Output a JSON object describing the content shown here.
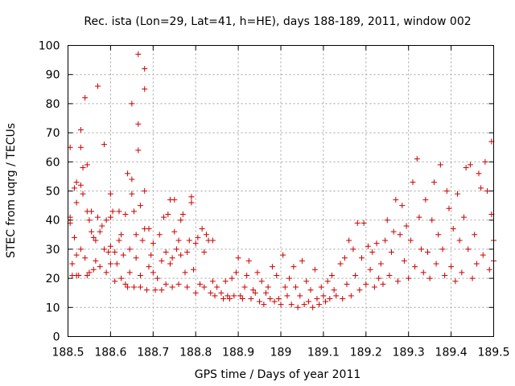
{
  "chart_data": {
    "type": "scatter",
    "title": "Rec. ista (Lon=29, Lat=41, h=HE), days 188-189, 2011, window 002",
    "xlabel": "GPS time / Days of year 2011",
    "ylabel": "STEC from uqrg / TECUs",
    "xlim": [
      188.5,
      189.5
    ],
    "ylim": [
      0,
      100
    ],
    "xticks": [
      188.5,
      188.6,
      188.7,
      188.8,
      188.9,
      189,
      189.1,
      189.2,
      189.3,
      189.4,
      189.5
    ],
    "xtick_labels": [
      "188.5",
      "188.6",
      "188.7",
      "188.8",
      "188.9",
      "189",
      "189.1",
      "189.2",
      "189.3",
      "189.4",
      "189.5"
    ],
    "yticks": [
      0,
      10,
      20,
      30,
      40,
      50,
      60,
      70,
      80,
      90,
      100
    ],
    "ytick_labels": [
      "0",
      "10",
      "20",
      "30",
      "40",
      "50",
      "60",
      "70",
      "80",
      "90",
      "100"
    ],
    "grid": true,
    "marker": "+",
    "color": "#cc0000",
    "series": [
      {
        "name": "STEC",
        "points": [
          [
            188.505,
            65
          ],
          [
            188.505,
            41
          ],
          [
            188.505,
            39
          ],
          [
            188.51,
            25
          ],
          [
            188.51,
            21
          ],
          [
            188.515,
            51
          ],
          [
            188.515,
            34
          ],
          [
            188.52,
            53
          ],
          [
            188.52,
            46
          ],
          [
            188.52,
            28
          ],
          [
            188.52,
            21
          ],
          [
            188.525,
            21
          ],
          [
            188.53,
            71
          ],
          [
            188.53,
            65
          ],
          [
            188.53,
            52
          ],
          [
            188.53,
            30
          ],
          [
            188.535,
            58
          ],
          [
            188.535,
            49
          ],
          [
            188.54,
            82
          ],
          [
            188.54,
            27
          ],
          [
            188.545,
            59
          ],
          [
            188.545,
            43
          ],
          [
            188.545,
            21
          ],
          [
            188.55,
            40
          ],
          [
            188.55,
            22
          ],
          [
            188.555,
            43
          ],
          [
            188.555,
            36
          ],
          [
            188.56,
            34
          ],
          [
            188.56,
            23
          ],
          [
            188.565,
            33
          ],
          [
            188.565,
            26
          ],
          [
            188.57,
            86
          ],
          [
            188.57,
            41
          ],
          [
            188.575,
            36
          ],
          [
            188.575,
            24
          ],
          [
            188.58,
            38
          ],
          [
            188.585,
            30
          ],
          [
            188.585,
            66
          ],
          [
            188.59,
            40
          ],
          [
            188.59,
            22
          ],
          [
            188.595,
            29
          ],
          [
            188.6,
            49
          ],
          [
            188.6,
            41
          ],
          [
            188.6,
            31
          ],
          [
            188.6,
            25
          ],
          [
            188.605,
            43
          ],
          [
            188.61,
            29
          ],
          [
            188.61,
            19
          ],
          [
            188.615,
            25
          ],
          [
            188.62,
            33
          ],
          [
            188.62,
            43
          ],
          [
            188.625,
            35
          ],
          [
            188.625,
            20
          ],
          [
            188.63,
            28
          ],
          [
            188.635,
            42
          ],
          [
            188.635,
            18
          ],
          [
            188.64,
            56
          ],
          [
            188.64,
            17
          ],
          [
            188.645,
            30
          ],
          [
            188.645,
            22
          ],
          [
            188.65,
            80
          ],
          [
            188.65,
            54
          ],
          [
            188.65,
            49
          ],
          [
            188.655,
            17
          ],
          [
            188.655,
            43
          ],
          [
            188.66,
            27
          ],
          [
            188.66,
            35
          ],
          [
            188.665,
            97
          ],
          [
            188.665,
            73
          ],
          [
            188.665,
            64
          ],
          [
            188.67,
            45
          ],
          [
            188.67,
            21
          ],
          [
            188.67,
            17
          ],
          [
            188.675,
            33
          ],
          [
            188.68,
            92
          ],
          [
            188.68,
            85
          ],
          [
            188.68,
            50
          ],
          [
            188.68,
            37
          ],
          [
            188.685,
            16
          ],
          [
            188.69,
            24
          ],
          [
            188.69,
            37
          ],
          [
            188.695,
            28
          ],
          [
            188.7,
            32
          ],
          [
            188.7,
            22
          ],
          [
            188.705,
            16
          ],
          [
            188.71,
            20
          ],
          [
            188.715,
            35
          ],
          [
            188.72,
            26
          ],
          [
            188.72,
            16
          ],
          [
            188.725,
            41
          ],
          [
            188.73,
            29
          ],
          [
            188.73,
            18
          ],
          [
            188.735,
            42
          ],
          [
            188.74,
            47
          ],
          [
            188.74,
            25
          ],
          [
            188.745,
            27
          ],
          [
            188.745,
            17
          ],
          [
            188.75,
            47
          ],
          [
            188.75,
            36
          ],
          [
            188.755,
            30
          ],
          [
            188.76,
            33
          ],
          [
            188.76,
            18
          ],
          [
            188.765,
            40
          ],
          [
            188.765,
            28
          ],
          [
            188.77,
            42
          ],
          [
            188.775,
            22
          ],
          [
            188.78,
            29
          ],
          [
            188.78,
            17
          ],
          [
            188.785,
            33
          ],
          [
            188.79,
            46
          ],
          [
            188.79,
            48
          ],
          [
            188.795,
            23
          ],
          [
            188.8,
            32
          ],
          [
            188.8,
            15
          ],
          [
            188.805,
            34
          ],
          [
            188.81,
            18
          ],
          [
            188.815,
            37
          ],
          [
            188.82,
            29
          ],
          [
            188.82,
            17
          ],
          [
            188.825,
            35
          ],
          [
            188.83,
            33
          ],
          [
            188.835,
            15
          ],
          [
            188.84,
            33
          ],
          [
            188.84,
            19
          ],
          [
            188.845,
            14
          ],
          [
            188.85,
            17
          ],
          [
            188.86,
            15
          ],
          [
            188.865,
            13
          ],
          [
            188.87,
            19
          ],
          [
            188.875,
            14
          ],
          [
            188.88,
            13
          ],
          [
            188.885,
            20
          ],
          [
            188.89,
            14
          ],
          [
            188.895,
            22
          ],
          [
            188.9,
            27
          ],
          [
            188.905,
            14
          ],
          [
            188.91,
            13
          ],
          [
            188.915,
            17
          ],
          [
            188.92,
            21
          ],
          [
            188.925,
            26
          ],
          [
            188.93,
            13
          ],
          [
            188.935,
            16
          ],
          [
            188.94,
            15
          ],
          [
            188.945,
            22
          ],
          [
            188.95,
            12
          ],
          [
            188.955,
            19
          ],
          [
            188.96,
            11
          ],
          [
            188.965,
            15
          ],
          [
            188.97,
            17
          ],
          [
            188.975,
            13
          ],
          [
            188.98,
            24
          ],
          [
            188.985,
            12
          ],
          [
            188.99,
            21
          ],
          [
            188.995,
            13
          ],
          [
            189.0,
            11
          ],
          [
            189.005,
            28
          ],
          [
            189.01,
            17
          ],
          [
            189.015,
            14
          ],
          [
            189.02,
            20
          ],
          [
            189.025,
            11
          ],
          [
            189.03,
            24
          ],
          [
            189.035,
            17
          ],
          [
            189.04,
            10
          ],
          [
            189.045,
            14
          ],
          [
            189.05,
            26
          ],
          [
            189.055,
            11
          ],
          [
            189.06,
            19
          ],
          [
            189.065,
            12
          ],
          [
            189.07,
            16
          ],
          [
            189.075,
            10
          ],
          [
            189.08,
            23
          ],
          [
            189.085,
            13
          ],
          [
            189.09,
            11
          ],
          [
            189.095,
            17
          ],
          [
            189.1,
            14
          ],
          [
            189.105,
            12
          ],
          [
            189.11,
            19
          ],
          [
            189.115,
            13
          ],
          [
            189.12,
            21
          ],
          [
            189.125,
            16
          ],
          [
            189.13,
            14
          ],
          [
            189.14,
            25
          ],
          [
            189.145,
            13
          ],
          [
            189.15,
            27
          ],
          [
            189.155,
            18
          ],
          [
            189.16,
            33
          ],
          [
            189.165,
            14
          ],
          [
            189.17,
            30
          ],
          [
            189.175,
            21
          ],
          [
            189.18,
            39
          ],
          [
            189.185,
            16
          ],
          [
            189.19,
            27
          ],
          [
            189.195,
            39
          ],
          [
            189.2,
            18
          ],
          [
            189.205,
            31
          ],
          [
            189.21,
            23
          ],
          [
            189.215,
            29
          ],
          [
            189.22,
            17
          ],
          [
            189.225,
            32
          ],
          [
            189.23,
            20
          ],
          [
            189.235,
            25
          ],
          [
            189.24,
            18
          ],
          [
            189.245,
            33
          ],
          [
            189.25,
            40
          ],
          [
            189.255,
            21
          ],
          [
            189.26,
            29
          ],
          [
            189.265,
            36
          ],
          [
            189.27,
            47
          ],
          [
            189.275,
            19
          ],
          [
            189.28,
            35
          ],
          [
            189.285,
            45
          ],
          [
            189.29,
            26
          ],
          [
            189.295,
            38
          ],
          [
            189.3,
            20
          ],
          [
            189.305,
            33
          ],
          [
            189.31,
            53
          ],
          [
            189.315,
            24
          ],
          [
            189.32,
            61
          ],
          [
            189.325,
            41
          ],
          [
            189.33,
            30
          ],
          [
            189.335,
            22
          ],
          [
            189.34,
            47
          ],
          [
            189.345,
            29
          ],
          [
            189.35,
            20
          ],
          [
            189.355,
            40
          ],
          [
            189.36,
            53
          ],
          [
            189.365,
            25
          ],
          [
            189.37,
            35
          ],
          [
            189.375,
            59
          ],
          [
            189.38,
            30
          ],
          [
            189.385,
            21
          ],
          [
            189.39,
            50
          ],
          [
            189.395,
            44
          ],
          [
            189.4,
            24
          ],
          [
            189.405,
            37
          ],
          [
            189.41,
            19
          ],
          [
            189.415,
            49
          ],
          [
            189.42,
            33
          ],
          [
            189.425,
            22
          ],
          [
            189.43,
            41
          ],
          [
            189.435,
            58
          ],
          [
            189.44,
            30
          ],
          [
            189.445,
            59
          ],
          [
            189.45,
            20
          ],
          [
            189.455,
            35
          ],
          [
            189.46,
            25
          ],
          [
            189.465,
            56
          ],
          [
            189.47,
            51
          ],
          [
            189.475,
            28
          ],
          [
            189.48,
            60
          ],
          [
            189.485,
            50
          ],
          [
            189.49,
            23
          ],
          [
            189.495,
            42
          ],
          [
            189.495,
            67
          ],
          [
            189.5,
            33
          ],
          [
            189.5,
            26
          ]
        ]
      }
    ]
  }
}
